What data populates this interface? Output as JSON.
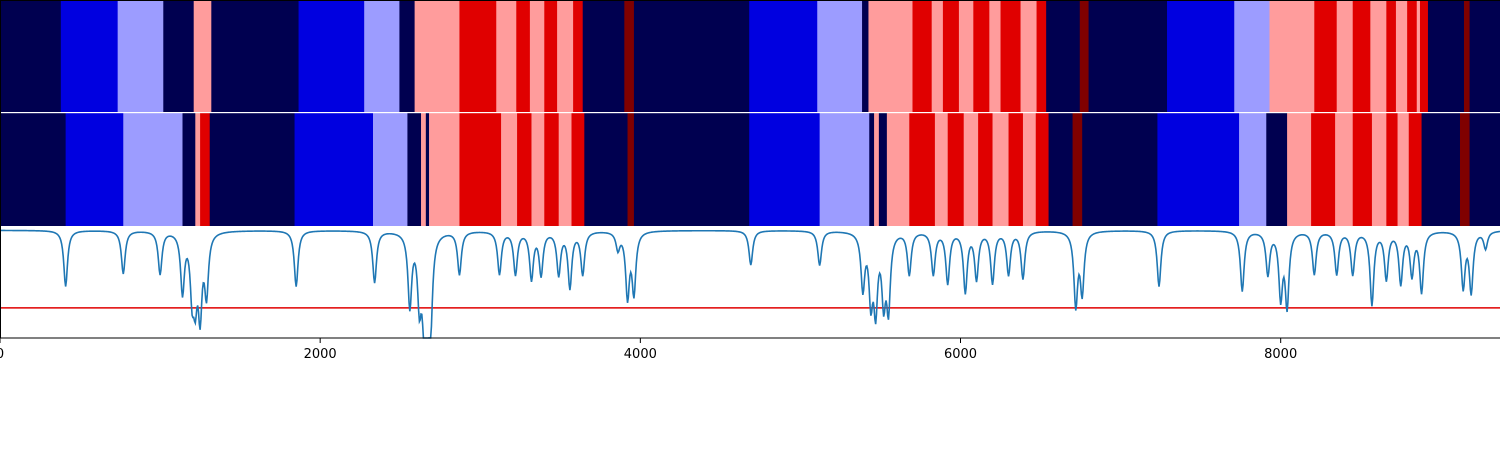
{
  "chart_data": [
    {
      "type": "heatmap",
      "name": "segmentation-row-1",
      "x_domain": [
        0,
        9370
      ],
      "palette": {
        "0": "#000050",
        "1": "#0000e0",
        "2": "#9c9cff",
        "3": "#ff9c9c",
        "4": "#e00000",
        "5": "#800000"
      },
      "segments": [
        [
          0,
          380,
          0
        ],
        [
          380,
          735,
          1
        ],
        [
          735,
          1020,
          2
        ],
        [
          1020,
          1210,
          0
        ],
        [
          1210,
          1320,
          3
        ],
        [
          1320,
          1865,
          0
        ],
        [
          1865,
          2275,
          1
        ],
        [
          2275,
          2495,
          2
        ],
        [
          2495,
          2590,
          0
        ],
        [
          2590,
          2870,
          3
        ],
        [
          2870,
          3100,
          4
        ],
        [
          3100,
          3225,
          3
        ],
        [
          3225,
          3310,
          4
        ],
        [
          3310,
          3400,
          3
        ],
        [
          3400,
          3480,
          4
        ],
        [
          3480,
          3580,
          3
        ],
        [
          3580,
          3640,
          4
        ],
        [
          3640,
          3900,
          0
        ],
        [
          3900,
          3960,
          5
        ],
        [
          3960,
          4680,
          0
        ],
        [
          4680,
          5105,
          1
        ],
        [
          5105,
          5385,
          2
        ],
        [
          5385,
          5425,
          0
        ],
        [
          5425,
          5700,
          3
        ],
        [
          5700,
          5820,
          4
        ],
        [
          5820,
          5890,
          3
        ],
        [
          5890,
          5990,
          4
        ],
        [
          5990,
          6080,
          3
        ],
        [
          6080,
          6180,
          4
        ],
        [
          6180,
          6250,
          3
        ],
        [
          6250,
          6375,
          4
        ],
        [
          6375,
          6475,
          3
        ],
        [
          6475,
          6535,
          4
        ],
        [
          6535,
          6745,
          0
        ],
        [
          6745,
          6800,
          5
        ],
        [
          6800,
          7290,
          0
        ],
        [
          7290,
          7710,
          1
        ],
        [
          7710,
          7930,
          2
        ],
        [
          7930,
          8210,
          3
        ],
        [
          8210,
          8350,
          4
        ],
        [
          8350,
          8450,
          3
        ],
        [
          8450,
          8560,
          4
        ],
        [
          8560,
          8660,
          3
        ],
        [
          8660,
          8720,
          4
        ],
        [
          8720,
          8790,
          3
        ],
        [
          8790,
          8850,
          4
        ],
        [
          8850,
          8870,
          3
        ],
        [
          8870,
          8920,
          4
        ],
        [
          8920,
          9145,
          0
        ],
        [
          9145,
          9180,
          5
        ],
        [
          9180,
          9370,
          0
        ]
      ]
    },
    {
      "type": "heatmap",
      "name": "segmentation-row-2",
      "x_domain": [
        0,
        9370
      ],
      "palette": {
        "0": "#000050",
        "1": "#0000e0",
        "2": "#9c9cff",
        "3": "#ff9c9c",
        "4": "#e00000",
        "5": "#800000"
      },
      "segments": [
        [
          0,
          410,
          0
        ],
        [
          410,
          770,
          1
        ],
        [
          770,
          1140,
          2
        ],
        [
          1140,
          1220,
          0
        ],
        [
          1220,
          1250,
          3
        ],
        [
          1250,
          1310,
          4
        ],
        [
          1310,
          1840,
          0
        ],
        [
          1840,
          2330,
          1
        ],
        [
          2330,
          2545,
          2
        ],
        [
          2545,
          2630,
          0
        ],
        [
          2630,
          2660,
          3
        ],
        [
          2660,
          2680,
          0
        ],
        [
          2680,
          2870,
          3
        ],
        [
          2870,
          3130,
          4
        ],
        [
          3130,
          3230,
          3
        ],
        [
          3230,
          3320,
          4
        ],
        [
          3320,
          3400,
          3
        ],
        [
          3400,
          3490,
          4
        ],
        [
          3490,
          3570,
          3
        ],
        [
          3570,
          3650,
          4
        ],
        [
          3650,
          3920,
          0
        ],
        [
          3920,
          3960,
          5
        ],
        [
          3960,
          4680,
          0
        ],
        [
          4680,
          5120,
          1
        ],
        [
          5120,
          5430,
          2
        ],
        [
          5430,
          5460,
          0
        ],
        [
          5460,
          5490,
          3
        ],
        [
          5490,
          5540,
          0
        ],
        [
          5540,
          5680,
          3
        ],
        [
          5680,
          5840,
          4
        ],
        [
          5840,
          5920,
          3
        ],
        [
          5920,
          6020,
          4
        ],
        [
          6020,
          6110,
          3
        ],
        [
          6110,
          6200,
          4
        ],
        [
          6200,
          6300,
          3
        ],
        [
          6300,
          6390,
          4
        ],
        [
          6390,
          6470,
          3
        ],
        [
          6470,
          6550,
          4
        ],
        [
          6550,
          6700,
          0
        ],
        [
          6700,
          6760,
          5
        ],
        [
          6760,
          7230,
          0
        ],
        [
          7230,
          7740,
          1
        ],
        [
          7740,
          7910,
          2
        ],
        [
          7910,
          8040,
          0
        ],
        [
          8040,
          8190,
          3
        ],
        [
          8190,
          8340,
          4
        ],
        [
          8340,
          8450,
          3
        ],
        [
          8450,
          8570,
          4
        ],
        [
          8570,
          8660,
          3
        ],
        [
          8660,
          8730,
          4
        ],
        [
          8730,
          8800,
          3
        ],
        [
          8800,
          8880,
          4
        ],
        [
          8880,
          9120,
          0
        ],
        [
          9120,
          9180,
          5
        ],
        [
          9180,
          9370,
          0
        ]
      ]
    },
    {
      "type": "line",
      "name": "probability-trace",
      "xlim": [
        0,
        9370
      ],
      "ylim": [
        -0.25,
        1.05
      ],
      "xticks": [
        0,
        2000,
        4000,
        6000,
        8000
      ],
      "threshold": 0.1,
      "line_color": "#1f77b4",
      "threshold_color": "#e00000",
      "baseline": 1.0,
      "dips": [
        [
          410,
          0.35
        ],
        [
          770,
          0.5
        ],
        [
          1000,
          0.5
        ],
        [
          1140,
          0.3
        ],
        [
          1200,
          0.35
        ],
        [
          1220,
          0.35
        ],
        [
          1250,
          0.1
        ],
        [
          1290,
          0.3
        ],
        [
          1850,
          0.35
        ],
        [
          2340,
          0.4
        ],
        [
          2560,
          0.15
        ],
        [
          2620,
          0.25
        ],
        [
          2650,
          0.2
        ],
        [
          2665,
          0.1
        ],
        [
          2690,
          0.05
        ],
        [
          2870,
          0.5
        ],
        [
          3120,
          0.5
        ],
        [
          3220,
          0.5
        ],
        [
          3320,
          0.45
        ],
        [
          3380,
          0.5
        ],
        [
          3490,
          0.5
        ],
        [
          3560,
          0.35
        ],
        [
          3640,
          0.5
        ],
        [
          3860,
          0.8
        ],
        [
          3920,
          0.25
        ],
        [
          3960,
          0.3
        ],
        [
          4690,
          0.6
        ],
        [
          5120,
          0.6
        ],
        [
          5390,
          0.35
        ],
        [
          5440,
          0.25
        ],
        [
          5470,
          0.15
        ],
        [
          5520,
          0.25
        ],
        [
          5550,
          0.15
        ],
        [
          5680,
          0.5
        ],
        [
          5830,
          0.5
        ],
        [
          5920,
          0.4
        ],
        [
          6030,
          0.3
        ],
        [
          6100,
          0.45
        ],
        [
          6200,
          0.4
        ],
        [
          6300,
          0.5
        ],
        [
          6390,
          0.45
        ],
        [
          6720,
          0.15
        ],
        [
          6760,
          0.3
        ],
        [
          7240,
          0.35
        ],
        [
          7760,
          0.3
        ],
        [
          7920,
          0.5
        ],
        [
          8000,
          0.25
        ],
        [
          8040,
          0.15
        ],
        [
          8210,
          0.5
        ],
        [
          8350,
          0.5
        ],
        [
          8450,
          0.5
        ],
        [
          8570,
          0.15
        ],
        [
          8660,
          0.45
        ],
        [
          8750,
          0.4
        ],
        [
          8820,
          0.5
        ],
        [
          8880,
          0.3
        ],
        [
          9140,
          0.35
        ],
        [
          9190,
          0.3
        ],
        [
          9280,
          0.8
        ]
      ]
    }
  ]
}
